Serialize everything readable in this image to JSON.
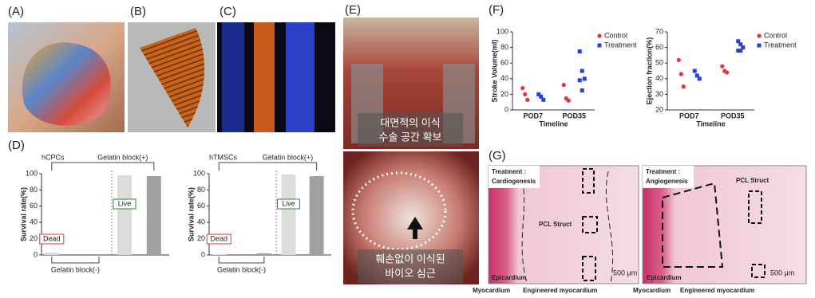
{
  "panel_labels": [
    "(A)",
    "(B)",
    "(C)",
    "(D)",
    "(E)",
    "(F)",
    "(G)"
  ],
  "photo_captions": [
    [
      "대면적의 이식",
      "수술 공간 확보"
    ],
    [
      "훼손없이 이식된",
      "바이오 심근"
    ]
  ],
  "histology": [
    {
      "treatment": "Treatment :",
      "kind": "Cardiogenesis",
      "struct": "PCL  Struct",
      "epicardium": "Epicardium",
      "myocardium": "Myocardium",
      "engineered": "Engineered myocardium",
      "scale": "500 μm"
    },
    {
      "treatment": "Treatment :",
      "kind": "Angiogenesis",
      "struct": "PCL Struct",
      "epicardium": "Epicardium",
      "myocardium": "Myocardium",
      "engineered": "Engineered myocardium",
      "scale": "500 μm"
    }
  ],
  "chart_data": [
    {
      "type": "bar",
      "title": "hCPCs",
      "ylabel": "Survival rate(%)",
      "categories": [
        null,
        null,
        null,
        null
      ],
      "values": [
        3,
        1,
        98,
        97
      ],
      "colors": [
        "#dcdcdc",
        "#a0a0a0",
        "#dcdcdc",
        "#a0a0a0"
      ],
      "ylim": [
        0,
        100
      ],
      "yticks": [
        0,
        20,
        40,
        60,
        80,
        100
      ],
      "group_top": "Gelatin block(+)",
      "group_bottom": "Gelatin block(-)",
      "dead": "Dead",
      "live": "Live"
    },
    {
      "type": "bar",
      "title": "hTMSCs",
      "ylabel": "Survival rate(%)",
      "categories": [
        null,
        null,
        null,
        null
      ],
      "values": [
        1,
        2,
        99,
        97
      ],
      "colors": [
        "#dcdcdc",
        "#a0a0a0",
        "#dcdcdc",
        "#a0a0a0"
      ],
      "ylim": [
        0,
        100
      ],
      "yticks": [
        0,
        20,
        40,
        60,
        80,
        100
      ],
      "group_top": "Gelatin block(+)",
      "group_bottom": "Gelatin block(-)",
      "dead": "Dead",
      "live": "Live"
    },
    {
      "type": "strip",
      "ylabel": "Stroke Volume(ml)",
      "xlabel": "Timeline",
      "categories": [
        "POD7",
        "POD35"
      ],
      "ylim": [
        0,
        100
      ],
      "yticks": [
        0,
        20,
        40,
        60,
        80,
        100
      ],
      "legend": "upper right",
      "series": [
        {
          "name": "Control",
          "color": "#e8323c",
          "marker": "circle",
          "values": [
            [
              28,
              20,
              13
            ],
            [
              32,
              15,
              12
            ]
          ]
        },
        {
          "name": "Treatment",
          "color": "#2440d8",
          "marker": "square",
          "values": [
            [
              20,
              17,
              13
            ],
            [
              75,
              50,
              40,
              38,
              25
            ]
          ]
        }
      ]
    },
    {
      "type": "strip",
      "ylabel": "Ejection fraction(%)",
      "xlabel": "Timeline",
      "categories": [
        "POD7",
        "POD35"
      ],
      "ylim": [
        20,
        70
      ],
      "yticks": [
        20,
        30,
        40,
        50,
        60,
        70
      ],
      "legend": "upper right",
      "series": [
        {
          "name": "Control",
          "color": "#e8323c",
          "marker": "circle",
          "values": [
            [
              52,
              43,
              35
            ],
            [
              48,
              45,
              44
            ]
          ]
        },
        {
          "name": "Treatment",
          "color": "#2440d8",
          "marker": "square",
          "values": [
            [
              45,
              42,
              40
            ],
            [
              64,
              62,
              60,
              58,
              58
            ]
          ]
        }
      ]
    }
  ]
}
